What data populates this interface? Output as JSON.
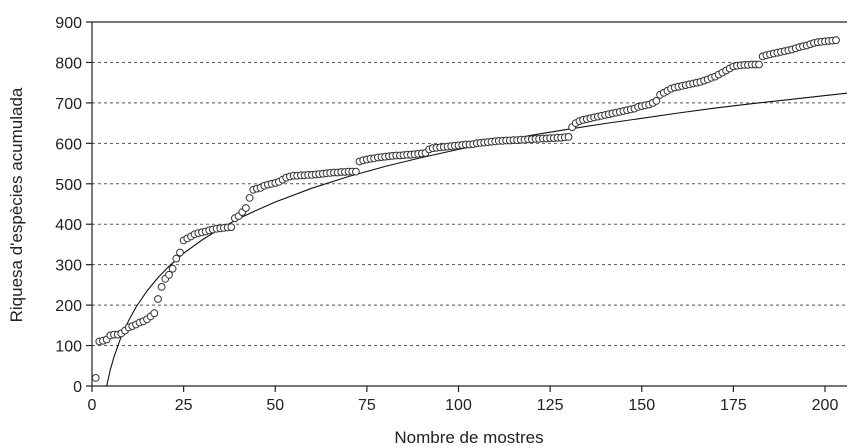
{
  "chart_data": {
    "type": "scatter",
    "title": "",
    "xlabel": "Nombre de mostres",
    "ylabel": "Riquesa d'espècies acumulada",
    "xlim": [
      0,
      206
    ],
    "ylim": [
      0,
      900
    ],
    "xticks": [
      0,
      25,
      50,
      75,
      100,
      125,
      150,
      175,
      200
    ],
    "yticks": [
      0,
      100,
      200,
      300,
      400,
      500,
      600,
      700,
      800,
      900
    ],
    "grid": "horizontal-dashed",
    "legend": "none",
    "series": [
      {
        "type": "scatter",
        "marker": "open-circle",
        "points": [
          [
            1,
            20
          ],
          [
            2,
            110
          ],
          [
            3,
            112
          ],
          [
            4,
            115
          ],
          [
            5,
            125
          ],
          [
            6,
            127
          ],
          [
            7,
            127
          ],
          [
            8,
            130
          ],
          [
            9,
            137
          ],
          [
            10,
            145
          ],
          [
            11,
            148
          ],
          [
            12,
            152
          ],
          [
            13,
            157
          ],
          [
            14,
            160
          ],
          [
            15,
            165
          ],
          [
            16,
            172
          ],
          [
            17,
            180
          ],
          [
            18,
            215
          ],
          [
            19,
            245
          ],
          [
            20,
            265
          ],
          [
            21,
            275
          ],
          [
            22,
            290
          ],
          [
            23,
            315
          ],
          [
            24,
            330
          ],
          [
            25,
            360
          ],
          [
            26,
            365
          ],
          [
            27,
            370
          ],
          [
            28,
            375
          ],
          [
            29,
            378
          ],
          [
            30,
            380
          ],
          [
            31,
            382
          ],
          [
            32,
            385
          ],
          [
            33,
            387
          ],
          [
            34,
            389
          ],
          [
            35,
            390
          ],
          [
            36,
            391
          ],
          [
            37,
            392
          ],
          [
            38,
            393
          ],
          [
            39,
            415
          ],
          [
            40,
            420
          ],
          [
            41,
            430
          ],
          [
            42,
            440
          ],
          [
            43,
            465
          ],
          [
            44,
            485
          ],
          [
            45,
            488
          ],
          [
            46,
            490
          ],
          [
            47,
            495
          ],
          [
            48,
            498
          ],
          [
            49,
            500
          ],
          [
            50,
            502
          ],
          [
            51,
            505
          ],
          [
            52,
            510
          ],
          [
            53,
            515
          ],
          [
            54,
            518
          ],
          [
            55,
            520
          ],
          [
            56,
            520
          ],
          [
            57,
            521
          ],
          [
            58,
            521
          ],
          [
            59,
            522
          ],
          [
            60,
            522
          ],
          [
            61,
            523
          ],
          [
            62,
            524
          ],
          [
            63,
            525
          ],
          [
            64,
            526
          ],
          [
            65,
            527
          ],
          [
            66,
            528
          ],
          [
            67,
            528
          ],
          [
            68,
            529
          ],
          [
            69,
            529
          ],
          [
            70,
            530
          ],
          [
            71,
            530
          ],
          [
            72,
            530
          ],
          [
            73,
            555
          ],
          [
            74,
            558
          ],
          [
            75,
            560
          ],
          [
            76,
            562
          ],
          [
            77,
            563
          ],
          [
            78,
            565
          ],
          [
            79,
            566
          ],
          [
            80,
            567
          ],
          [
            81,
            568
          ],
          [
            82,
            569
          ],
          [
            83,
            570
          ],
          [
            84,
            570
          ],
          [
            85,
            571
          ],
          [
            86,
            572
          ],
          [
            87,
            572
          ],
          [
            88,
            573
          ],
          [
            89,
            574
          ],
          [
            90,
            575
          ],
          [
            91,
            576
          ],
          [
            92,
            585
          ],
          [
            93,
            588
          ],
          [
            94,
            589
          ],
          [
            95,
            590
          ],
          [
            96,
            591
          ],
          [
            97,
            592
          ],
          [
            98,
            593
          ],
          [
            99,
            594
          ],
          [
            100,
            595
          ],
          [
            101,
            596
          ],
          [
            102,
            597
          ],
          [
            103,
            597
          ],
          [
            104,
            598
          ],
          [
            105,
            600
          ],
          [
            106,
            601
          ],
          [
            107,
            602
          ],
          [
            108,
            603
          ],
          [
            109,
            604
          ],
          [
            110,
            605
          ],
          [
            111,
            606
          ],
          [
            112,
            606
          ],
          [
            113,
            607
          ],
          [
            114,
            607
          ],
          [
            115,
            608
          ],
          [
            116,
            608
          ],
          [
            117,
            609
          ],
          [
            118,
            609
          ],
          [
            119,
            610
          ],
          [
            120,
            610
          ],
          [
            121,
            611
          ],
          [
            122,
            611
          ],
          [
            123,
            612
          ],
          [
            124,
            612
          ],
          [
            125,
            613
          ],
          [
            126,
            613
          ],
          [
            127,
            614
          ],
          [
            128,
            614
          ],
          [
            129,
            615
          ],
          [
            130,
            616
          ],
          [
            131,
            640
          ],
          [
            132,
            650
          ],
          [
            133,
            655
          ],
          [
            134,
            658
          ],
          [
            135,
            660
          ],
          [
            136,
            662
          ],
          [
            137,
            664
          ],
          [
            138,
            666
          ],
          [
            139,
            668
          ],
          [
            140,
            670
          ],
          [
            141,
            672
          ],
          [
            142,
            674
          ],
          [
            143,
            676
          ],
          [
            144,
            678
          ],
          [
            145,
            680
          ],
          [
            146,
            682
          ],
          [
            147,
            684
          ],
          [
            148,
            686
          ],
          [
            149,
            690
          ],
          [
            150,
            692
          ],
          [
            151,
            694
          ],
          [
            152,
            696
          ],
          [
            153,
            700
          ],
          [
            154,
            705
          ],
          [
            155,
            720
          ],
          [
            156,
            725
          ],
          [
            157,
            730
          ],
          [
            158,
            735
          ],
          [
            159,
            738
          ],
          [
            160,
            740
          ],
          [
            161,
            742
          ],
          [
            162,
            744
          ],
          [
            163,
            746
          ],
          [
            164,
            748
          ],
          [
            165,
            750
          ],
          [
            166,
            752
          ],
          [
            167,
            755
          ],
          [
            168,
            758
          ],
          [
            169,
            762
          ],
          [
            170,
            765
          ],
          [
            171,
            770
          ],
          [
            172,
            775
          ],
          [
            173,
            780
          ],
          [
            174,
            785
          ],
          [
            175,
            790
          ],
          [
            176,
            792
          ],
          [
            177,
            793
          ],
          [
            178,
            794
          ],
          [
            179,
            794
          ],
          [
            180,
            795
          ],
          [
            181,
            795
          ],
          [
            182,
            795
          ],
          [
            183,
            815
          ],
          [
            184,
            818
          ],
          [
            185,
            820
          ],
          [
            186,
            822
          ],
          [
            187,
            824
          ],
          [
            188,
            826
          ],
          [
            189,
            828
          ],
          [
            190,
            830
          ],
          [
            191,
            832
          ],
          [
            192,
            835
          ],
          [
            193,
            838
          ],
          [
            194,
            840
          ],
          [
            195,
            842
          ],
          [
            196,
            845
          ],
          [
            197,
            848
          ],
          [
            198,
            850
          ],
          [
            199,
            851
          ],
          [
            200,
            852
          ],
          [
            201,
            853
          ],
          [
            202,
            854
          ],
          [
            203,
            855
          ]
        ]
      },
      {
        "type": "line",
        "style": "logarithmic-fit",
        "points": [
          [
            4,
            0
          ],
          [
            5,
            40
          ],
          [
            6,
            72
          ],
          [
            8,
            123
          ],
          [
            10,
            162
          ],
          [
            12,
            195
          ],
          [
            15,
            235
          ],
          [
            18,
            268
          ],
          [
            21,
            296
          ],
          [
            25,
            328
          ],
          [
            30,
            361
          ],
          [
            35,
            389
          ],
          [
            40,
            414
          ],
          [
            45,
            435
          ],
          [
            50,
            455
          ],
          [
            60,
            489
          ],
          [
            70,
            518
          ],
          [
            80,
            543
          ],
          [
            90,
            565
          ],
          [
            100,
            585
          ],
          [
            110,
            603
          ],
          [
            120,
            620
          ],
          [
            130,
            635
          ],
          [
            140,
            649
          ],
          [
            150,
            662
          ],
          [
            160,
            675
          ],
          [
            170,
            687
          ],
          [
            180,
            698
          ],
          [
            190,
            708
          ],
          [
            200,
            718
          ],
          [
            206,
            724
          ]
        ]
      }
    ]
  }
}
